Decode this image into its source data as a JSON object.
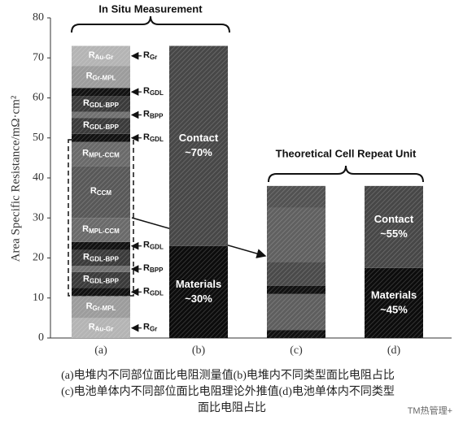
{
  "chart_data": {
    "type": "stacked_bar",
    "ylabel": "Area Specific Resistance/mΩ·cm²",
    "ylim": [
      0,
      80
    ],
    "yticks": [
      0,
      10,
      20,
      30,
      40,
      50,
      60,
      70,
      80
    ],
    "categories": [
      "(a)",
      "(b)",
      "(c)",
      "(d)"
    ],
    "brace_labels": [
      "In Situ Measurement",
      "Theoretical Cell Repeat Unit"
    ],
    "bars": [
      {
        "segments": [
          {
            "value": 5,
            "color": "#b4b4b4",
            "symbol": "R",
            "subscript": "Au-Gr",
            "callout": {
              "symbol": "R",
              "subscript": "Gr"
            }
          },
          {
            "value": 5.5,
            "color": "#9c9c9c",
            "symbol": "R",
            "subscript": "Gr-MPL"
          },
          {
            "value": 2,
            "color": "#111111",
            "callout": {
              "symbol": "R",
              "subscript": "GDL"
            }
          },
          {
            "value": 4,
            "color": "#3a3a3a",
            "symbol": "R",
            "subscript": "GDL-BPP"
          },
          {
            "value": 1.5,
            "color": "#707070",
            "callout": {
              "symbol": "R",
              "subscript": "BPP"
            }
          },
          {
            "value": 4,
            "color": "#3a3a3a",
            "symbol": "R",
            "subscript": "GDL-BPP"
          },
          {
            "value": 2,
            "color": "#111111",
            "callout": {
              "symbol": "R",
              "subscript": "GDL"
            }
          },
          {
            "value": 6,
            "color": "#6a6a6a",
            "symbol": "R",
            "subscript": "MPL-CCM"
          },
          {
            "value": 13,
            "color": "#585858",
            "symbol": "R",
            "subscript": "CCM"
          },
          {
            "value": 6,
            "color": "#6a6a6a",
            "symbol": "R",
            "subscript": "MPL-CCM"
          },
          {
            "value": 2,
            "color": "#111111",
            "callout": {
              "symbol": "R",
              "subscript": "GDL"
            }
          },
          {
            "value": 4,
            "color": "#3a3a3a",
            "symbol": "R",
            "subscript": "GDL-BPP"
          },
          {
            "value": 1.5,
            "color": "#707070",
            "callout": {
              "symbol": "R",
              "subscript": "BPP"
            }
          },
          {
            "value": 4,
            "color": "#3a3a3a",
            "symbol": "R",
            "subscript": "GDL-BPP"
          },
          {
            "value": 2,
            "color": "#111111",
            "callout": {
              "symbol": "R",
              "subscript": "GDL"
            }
          },
          {
            "value": 5.5,
            "color": "#9c9c9c",
            "symbol": "R",
            "subscript": "Gr-MPL"
          },
          {
            "value": 5,
            "color": "#b4b4b4",
            "symbol": "R",
            "subscript": "Au-Gr",
            "callout": {
              "symbol": "R",
              "subscript": "Gr"
            }
          }
        ]
      },
      {
        "segments": [
          {
            "value": 23,
            "color": "#0c0c0c",
            "name": "Materials",
            "note": "~30%"
          },
          {
            "value": 50,
            "color": "#474747",
            "name": "Contact",
            "note": "~70%"
          }
        ]
      },
      {
        "segments": [
          {
            "value": 2,
            "color": "#111111"
          },
          {
            "value": 9,
            "color": "#5e5e5e"
          },
          {
            "value": 2,
            "color": "#111111"
          },
          {
            "value": 6,
            "color": "#4a4a4a"
          },
          {
            "value": 13.5,
            "color": "#606060"
          },
          {
            "value": 5.5,
            "color": "#525252"
          }
        ]
      },
      {
        "segments": [
          {
            "value": 17.5,
            "color": "#0c0c0c",
            "name": "Materials",
            "note": "~45%"
          },
          {
            "value": 20.5,
            "color": "#474747",
            "name": "Contact",
            "note": "~55%"
          }
        ]
      }
    ]
  },
  "caption": {
    "lines": [
      "(a)电堆内不同部位面比电阻测量值(b)电堆内不同类型面比电阻占比",
      "(c)电池单体内不同部位面比电阻理论外推值(d)电池单体内不同类型",
      "面比电阻占比"
    ]
  },
  "watermark": "TM热管理+"
}
